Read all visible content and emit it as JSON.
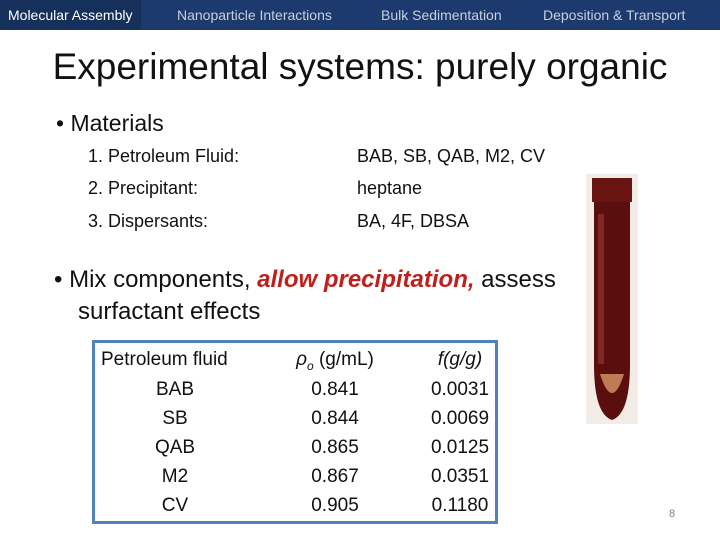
{
  "nav": {
    "tabs": [
      "Molecular Assembly",
      "Nanoparticle Interactions",
      "Bulk Sedimentation",
      "Deposition & Transport"
    ]
  },
  "title": "Experimental systems: purely organic",
  "materials": {
    "heading": "Materials",
    "items": [
      {
        "label": "1. Petroleum Fluid:",
        "value": "BAB, SB, QAB, M2, CV"
      },
      {
        "label": "2. Precipitant:",
        "value": "heptane"
      },
      {
        "label": "3. Dispersants:",
        "value": "BA, 4F, DBSA"
      }
    ]
  },
  "bullet": {
    "before": "Mix components, ",
    "emphasis": "allow precipitation,",
    "after": " assess",
    "line2": "surfactant effects"
  },
  "table": {
    "header": {
      "fluid": "Petroleum fluid",
      "density_symbol": "ρ",
      "density_subscript": "o",
      "density_unit": "(g/mL)",
      "fraction": "f(g/g)"
    },
    "rows": [
      [
        "BAB",
        "0.841",
        "0.0031"
      ],
      [
        "SB",
        "0.844",
        "0.0069"
      ],
      [
        "QAB",
        "0.865",
        "0.0125"
      ],
      [
        "M2",
        "0.867",
        "0.0351"
      ],
      [
        "CV",
        "0.905",
        "0.1180"
      ]
    ]
  },
  "page_number": "8"
}
